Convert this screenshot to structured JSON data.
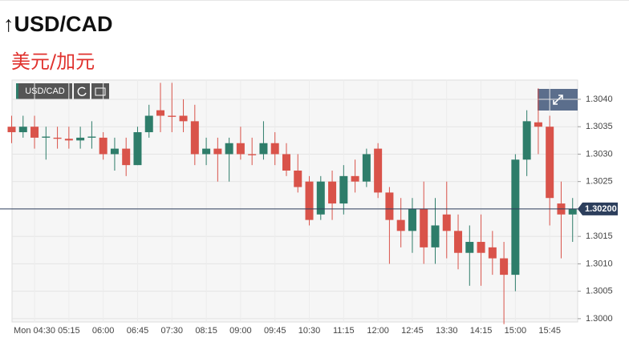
{
  "title": "USD/CAD",
  "subtitle": "美元/加元",
  "toolbar_symbol": "USD/CAD",
  "chart_data": {
    "type": "candlestick",
    "categories": [
      null,
      null,
      "Mon 04:30",
      null,
      null,
      "05:15",
      null,
      null,
      "06:00",
      null,
      null,
      "06:45",
      null,
      null,
      "07:30",
      null,
      null,
      "08:15",
      null,
      null,
      "09:00",
      null,
      null,
      "09:45",
      null,
      null,
      "10:30",
      null,
      null,
      "11:15",
      null,
      null,
      "12:00",
      null,
      null,
      "12:45",
      null,
      null,
      "13:30",
      null,
      null,
      "14:15",
      null,
      null,
      "15:00",
      null,
      null,
      "15:45",
      null,
      null
    ],
    "open": [
      1.3035,
      1.3034,
      1.3035,
      1.3033,
      1.3033,
      1.30328,
      1.30325,
      1.3033,
      1.3033,
      1.303,
      1.3031,
      1.3028,
      1.3034,
      1.3038,
      1.3037,
      1.3037,
      1.3036,
      1.303,
      1.3031,
      1.303,
      1.3032,
      1.303,
      1.303,
      1.3032,
      1.303,
      1.3027,
      1.3025,
      1.3019,
      1.3025,
      1.3021,
      1.3026,
      1.3025,
      1.3031,
      1.3023,
      1.3018,
      1.3016,
      1.302,
      1.3013,
      1.3019,
      1.3016,
      1.3012,
      1.3014,
      1.3013,
      1.3011,
      1.3008,
      1.3029,
      1.30358,
      1.3035,
      1.3021,
      1.3019
    ],
    "high": [
      1.3037,
      1.3037,
      1.3037,
      1.3035,
      1.3035,
      1.3035,
      1.3035,
      1.3036,
      1.3034,
      1.3033,
      1.3033,
      1.3035,
      1.3039,
      1.3043,
      1.3043,
      1.304,
      1.3039,
      1.3033,
      1.3033,
      1.3033,
      1.3035,
      1.3033,
      1.3036,
      1.3034,
      1.3032,
      1.303,
      1.3026,
      1.3026,
      1.3027,
      1.3028,
      1.3029,
      1.3031,
      1.3032,
      1.3024,
      1.3022,
      1.3022,
      1.3025,
      1.3022,
      1.3025,
      1.3019,
      1.3017,
      1.3019,
      1.3016,
      1.3014,
      1.303,
      1.3038,
      1.3042,
      1.3037,
      1.3025,
      1.3022
    ],
    "low": [
      1.3032,
      1.3033,
      1.3031,
      1.3029,
      1.3031,
      1.3031,
      1.3031,
      1.3031,
      1.3029,
      1.3027,
      1.3026,
      1.3028,
      1.3033,
      1.3034,
      1.3034,
      1.3034,
      1.3028,
      1.3028,
      1.3025,
      1.3025,
      1.3029,
      1.3028,
      1.3029,
      1.3028,
      1.3026,
      1.3023,
      1.3017,
      1.3018,
      1.3018,
      1.3019,
      1.3023,
      1.3024,
      1.3022,
      1.301,
      1.3013,
      1.3012,
      1.301,
      1.301,
      1.3011,
      1.3009,
      1.3006,
      1.3006,
      1.3008,
      1.2999,
      1.3005,
      1.3026,
      1.303,
      1.3017,
      1.3011,
      1.3014
    ],
    "close": [
      1.3034,
      1.3035,
      1.3033,
      1.30332,
      1.30328,
      1.30325,
      1.3033,
      1.30332,
      1.303,
      1.3031,
      1.3028,
      1.3034,
      1.3037,
      1.3037,
      1.30368,
      1.3036,
      1.303,
      1.3031,
      1.303,
      1.3032,
      1.303,
      1.30298,
      1.3032,
      1.303,
      1.3027,
      1.3024,
      1.3018,
      1.3025,
      1.3021,
      1.3026,
      1.3025,
      1.303,
      1.3023,
      1.3018,
      1.3016,
      1.302,
      1.3013,
      1.3017,
      1.3016,
      1.3012,
      1.3014,
      1.3012,
      1.3011,
      1.3008,
      1.3029,
      1.3036,
      1.3035,
      1.3022,
      1.3019,
      1.302
    ],
    "up_color": "#2e7d6a",
    "down_color": "#d9534a",
    "ylim": [
      1.29994,
      1.30435
    ],
    "yticks": [
      {
        "value": 1.3,
        "label": "1.3000"
      },
      {
        "value": 1.3005,
        "label": "1.3005"
      },
      {
        "value": 1.301,
        "label": "1.3010"
      },
      {
        "value": 1.3015,
        "label": "1.3015"
      },
      {
        "value": 1.302,
        "label": "1.3020"
      },
      {
        "value": 1.3025,
        "label": "1.3025"
      },
      {
        "value": 1.303,
        "label": "1.3030"
      },
      {
        "value": 1.3035,
        "label": "1.3035"
      },
      {
        "value": 1.304,
        "label": "1.3040"
      }
    ],
    "last_price": {
      "value": 1.302,
      "label": "1.30200"
    },
    "grid": true
  }
}
